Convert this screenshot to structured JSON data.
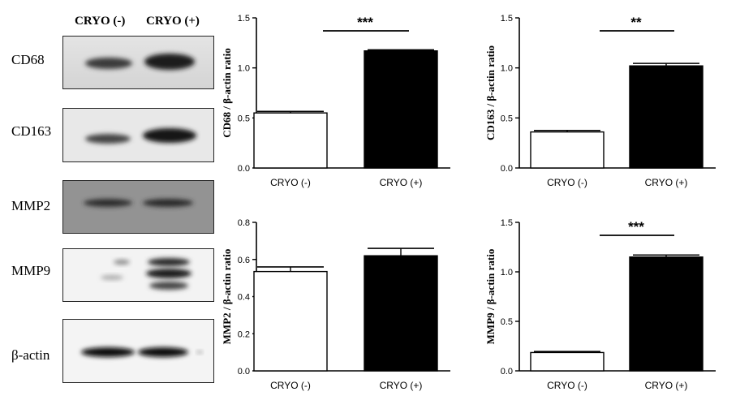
{
  "blot": {
    "header_neg": "CRYO (-)",
    "header_pos": "CRYO (+)",
    "rows": [
      {
        "label": "CD68"
      },
      {
        "label": "CD163"
      },
      {
        "label": "MMP2"
      },
      {
        "label": "MMP9"
      },
      {
        "label": "β-actin"
      }
    ]
  },
  "chart_data": [
    {
      "type": "bar",
      "categories": [
        "CRYO (-)",
        "CRYO (+)"
      ],
      "values": [
        0.55,
        1.17
      ],
      "errors": [
        0.015,
        0.01
      ],
      "bar_colors": [
        "#ffffff",
        "#000000"
      ],
      "ylabel": "CD68 / β-actin ratio",
      "ylim": [
        0,
        1.5
      ],
      "yticks": [
        "0.0",
        "0.5",
        "1.0",
        "1.5"
      ],
      "significance": "***"
    },
    {
      "type": "bar",
      "categories": [
        "CRYO (-)",
        "CRYO (+)"
      ],
      "values": [
        0.36,
        1.02
      ],
      "errors": [
        0.015,
        0.025
      ],
      "bar_colors": [
        "#ffffff",
        "#000000"
      ],
      "ylabel": "CD163 / β-actin ratio",
      "ylim": [
        0,
        1.5
      ],
      "yticks": [
        "0.0",
        "0.5",
        "1.0",
        "1.5"
      ],
      "significance": "**"
    },
    {
      "type": "bar",
      "categories": [
        "CRYO (-)",
        "CRYO (+)"
      ],
      "values": [
        0.535,
        0.62
      ],
      "errors": [
        0.025,
        0.04
      ],
      "bar_colors": [
        "#ffffff",
        "#000000"
      ],
      "ylabel": "MMP2 / β-actin ratio",
      "ylim": [
        0,
        0.8
      ],
      "yticks": [
        "0.0",
        "0.2",
        "0.4",
        "0.6",
        "0.8"
      ],
      "significance": ""
    },
    {
      "type": "bar",
      "categories": [
        "CRYO (-)",
        "CRYO (+)"
      ],
      "values": [
        0.185,
        1.15
      ],
      "errors": [
        0.01,
        0.02
      ],
      "bar_colors": [
        "#ffffff",
        "#000000"
      ],
      "ylabel": "MMP9 / β-actin ratio",
      "ylim": [
        0,
        1.5
      ],
      "yticks": [
        "0.0",
        "0.5",
        "1.0",
        "1.5"
      ],
      "significance": "***"
    }
  ]
}
